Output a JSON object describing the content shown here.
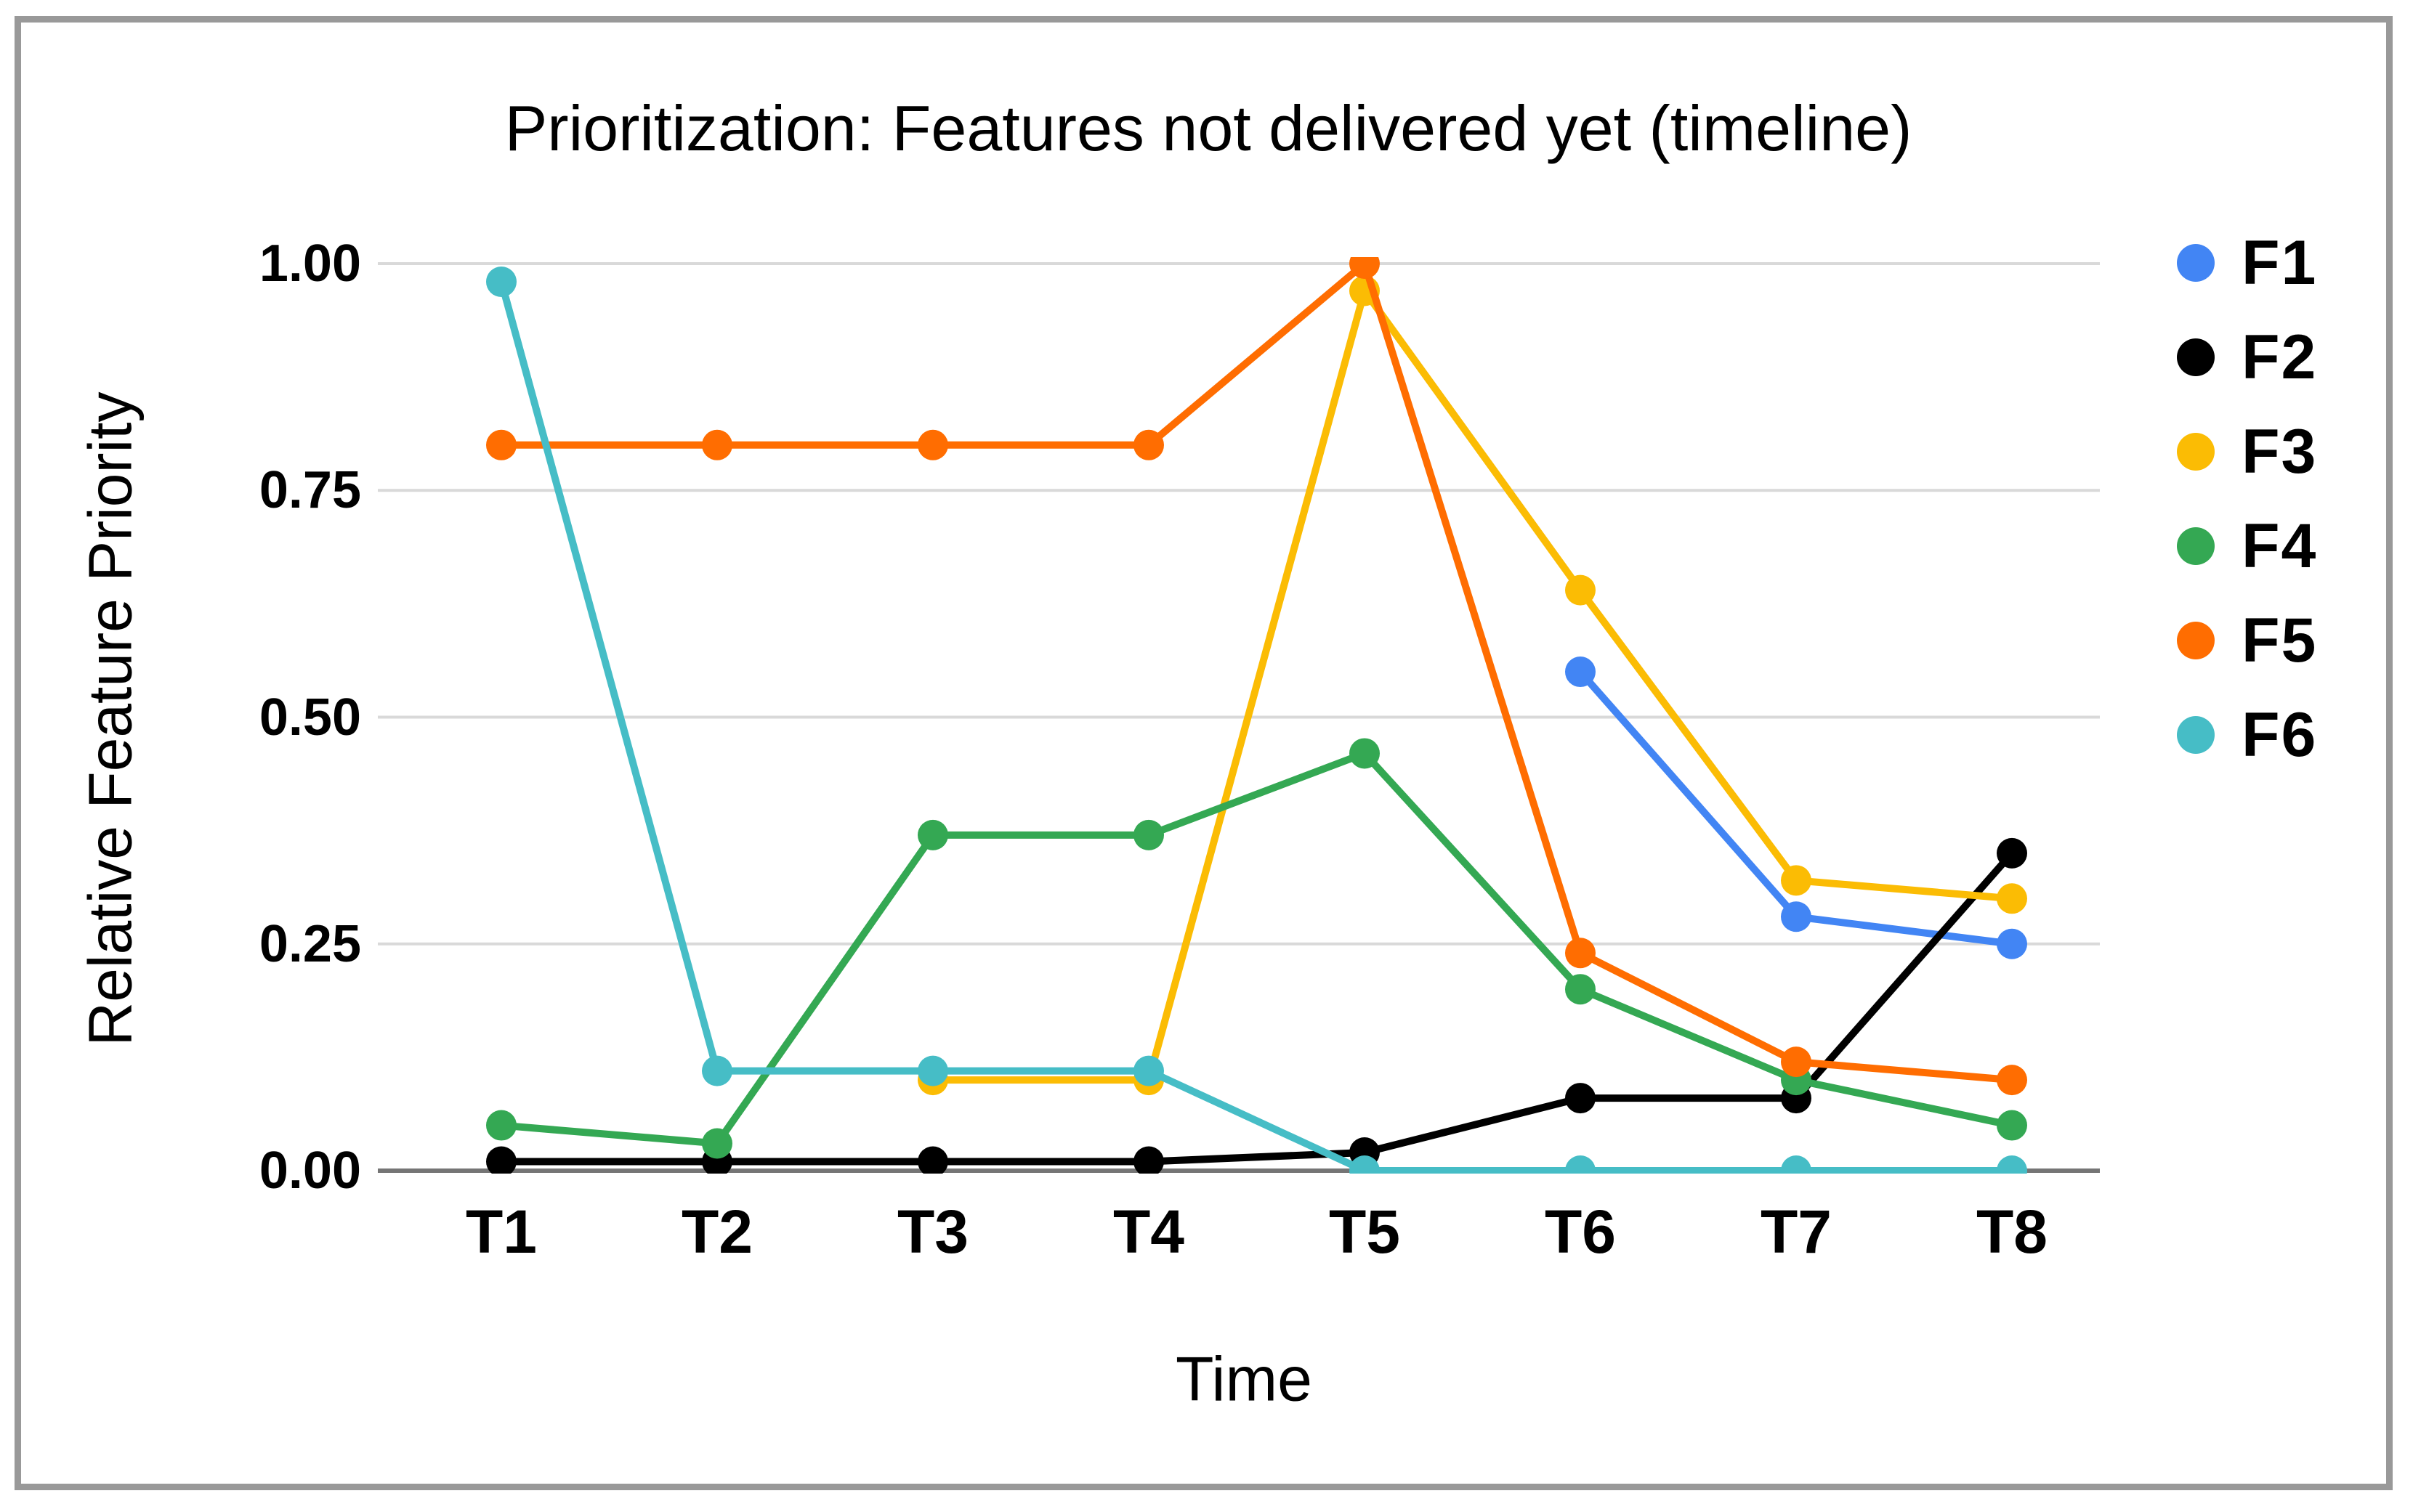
{
  "window": {
    "frame_border_color": "#999999",
    "background_color": "#ffffff"
  },
  "chart_data": {
    "type": "line",
    "title": "Prioritization: Features not delivered yet (timeline)",
    "xlabel": "Time",
    "ylabel": "Relative Feature Priority",
    "categories": [
      "T1",
      "T2",
      "T3",
      "T4",
      "T5",
      "T6",
      "T7",
      "T8"
    ],
    "y_ticks": [
      "0.00",
      "0.25",
      "0.50",
      "0.75",
      "1.00"
    ],
    "y_tick_values": [
      0,
      0.25,
      0.5,
      0.75,
      1.0
    ],
    "ylim": [
      0,
      1
    ],
    "grid": "horizontal-only",
    "legend_position": "right",
    "series": [
      {
        "name": "F1",
        "color": "#4285F4",
        "values": [
          null,
          null,
          null,
          null,
          null,
          0.55,
          0.28,
          0.25
        ]
      },
      {
        "name": "F2",
        "color": "#000000",
        "values": [
          0.01,
          0.01,
          0.01,
          0.01,
          0.02,
          0.08,
          0.08,
          0.35
        ]
      },
      {
        "name": "F3",
        "color": "#FBBC04",
        "values": [
          null,
          null,
          0.1,
          0.1,
          0.97,
          0.64,
          0.32,
          0.3
        ]
      },
      {
        "name": "F4",
        "color": "#34A853",
        "values": [
          0.05,
          0.03,
          0.37,
          0.37,
          0.46,
          0.2,
          0.1,
          0.05
        ]
      },
      {
        "name": "F5",
        "color": "#FF6D01",
        "values": [
          0.8,
          0.8,
          0.8,
          0.8,
          1.0,
          0.24,
          0.12,
          0.1
        ]
      },
      {
        "name": "F6",
        "color": "#46BDC6",
        "values": [
          0.98,
          0.11,
          0.11,
          0.11,
          0.0,
          0.0,
          0.0,
          0.0
        ]
      }
    ],
    "colors": {
      "gridline": "#d9d9d9",
      "axis_line": "#757575",
      "text": "#000000",
      "background": "#ffffff"
    }
  }
}
